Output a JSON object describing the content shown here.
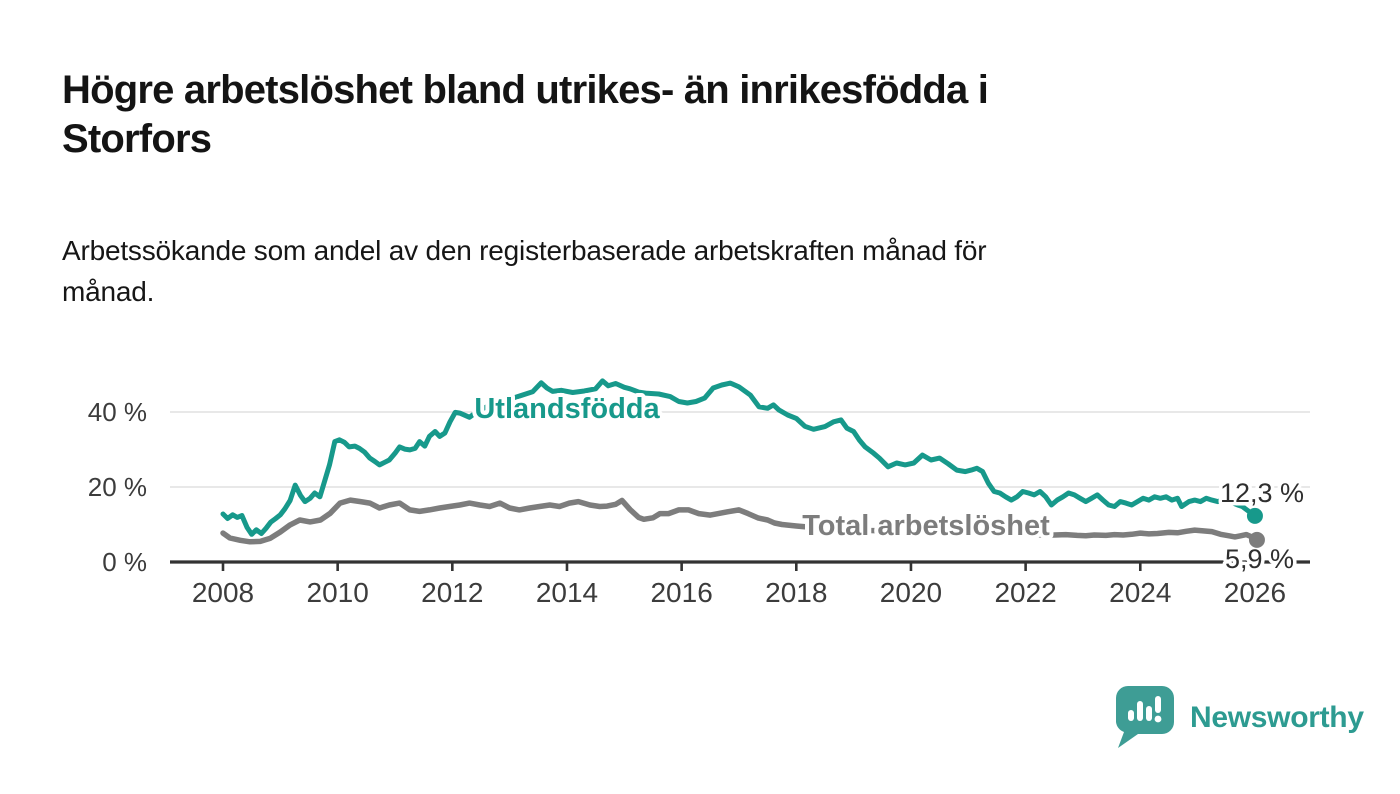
{
  "header": {
    "title_line1": "Högre arbetslöshet bland utrikes- än inrikesfödda i",
    "title_line2": "Storfors",
    "subtitle_line1": "Arbetssökande som andel av den registerbaserade arbetskraften månad för",
    "subtitle_line2": "månad."
  },
  "colors": {
    "foreign_born_line": "#17998b",
    "total_line": "#7d7d7d",
    "gridline": "#e0e0e0",
    "axis": "#333333",
    "axis_text": "#3c3c3c",
    "end_label_text": "#2f2f2f",
    "brand_teal": "#2d9b91",
    "logo_bubble": "#3e9d95"
  },
  "chart_data": {
    "type": "line",
    "title": "",
    "xlabel": "",
    "ylabel": "",
    "unit": "%",
    "grid": "horizontal",
    "x_axis": {
      "tick_years": [
        2008,
        2010,
        2012,
        2014,
        2016,
        2018,
        2020,
        2022,
        2024,
        2026
      ],
      "tick_labels": [
        "2008",
        "2010",
        "2012",
        "2014",
        "2016",
        "2018",
        "2020",
        "2022",
        "2024",
        "2026"
      ],
      "range": [
        2008,
        2027
      ]
    },
    "y_axis": {
      "ticks": [
        {
          "value": 0,
          "label": "0 %"
        },
        {
          "value": 20,
          "label": "20 %"
        },
        {
          "value": 40,
          "label": "40 %"
        }
      ],
      "range": [
        0,
        50
      ]
    },
    "series": [
      {
        "name": "Total arbetslöshet",
        "color": "#7d7d7d",
        "end_label": "5,9 %",
        "end_value": 5.9,
        "points": [
          [
            2008.0,
            7.7
          ],
          [
            2008.12,
            6.4
          ],
          [
            2008.3,
            5.8
          ],
          [
            2008.47,
            5.4
          ],
          [
            2008.65,
            5.5
          ],
          [
            2008.82,
            6.3
          ],
          [
            2009.0,
            8.0
          ],
          [
            2009.17,
            9.9
          ],
          [
            2009.34,
            11.2
          ],
          [
            2009.52,
            10.7
          ],
          [
            2009.7,
            11.2
          ],
          [
            2009.87,
            13.0
          ],
          [
            2010.04,
            15.7
          ],
          [
            2010.22,
            16.5
          ],
          [
            2010.4,
            16.1
          ],
          [
            2010.56,
            15.7
          ],
          [
            2010.73,
            14.4
          ],
          [
            2010.9,
            15.2
          ],
          [
            2011.08,
            15.7
          ],
          [
            2011.26,
            13.9
          ],
          [
            2011.43,
            13.5
          ],
          [
            2011.6,
            13.9
          ],
          [
            2011.78,
            14.4
          ],
          [
            2011.95,
            14.8
          ],
          [
            2012.13,
            15.2
          ],
          [
            2012.3,
            15.7
          ],
          [
            2012.48,
            15.2
          ],
          [
            2012.65,
            14.8
          ],
          [
            2012.83,
            15.7
          ],
          [
            2013.0,
            14.4
          ],
          [
            2013.17,
            13.9
          ],
          [
            2013.35,
            14.4
          ],
          [
            2013.52,
            14.8
          ],
          [
            2013.7,
            15.2
          ],
          [
            2013.87,
            14.8
          ],
          [
            2014.04,
            15.7
          ],
          [
            2014.2,
            16.1
          ],
          [
            2014.4,
            15.2
          ],
          [
            2014.57,
            14.8
          ],
          [
            2014.7,
            14.9
          ],
          [
            2014.85,
            15.4
          ],
          [
            2014.96,
            16.4
          ],
          [
            2015.1,
            14.0
          ],
          [
            2015.25,
            11.9
          ],
          [
            2015.34,
            11.4
          ],
          [
            2015.5,
            11.8
          ],
          [
            2015.62,
            12.9
          ],
          [
            2015.77,
            12.9
          ],
          [
            2015.95,
            13.9
          ],
          [
            2016.12,
            13.9
          ],
          [
            2016.3,
            12.9
          ],
          [
            2016.5,
            12.5
          ],
          [
            2016.64,
            12.9
          ],
          [
            2016.8,
            13.4
          ],
          [
            2017.0,
            13.9
          ],
          [
            2017.16,
            12.9
          ],
          [
            2017.34,
            11.7
          ],
          [
            2017.5,
            11.2
          ],
          [
            2017.62,
            10.4
          ],
          [
            2017.75,
            10.0
          ],
          [
            2018.0,
            9.6
          ],
          [
            2018.3,
            9.2
          ],
          [
            2018.7,
            8.9
          ],
          [
            2019.0,
            8.7
          ],
          [
            2019.3,
            8.4
          ],
          [
            2019.7,
            8.2
          ],
          [
            2020.0,
            8.6
          ],
          [
            2020.3,
            9.0
          ],
          [
            2020.7,
            8.8
          ],
          [
            2021.0,
            8.3
          ],
          [
            2021.3,
            7.9
          ],
          [
            2021.7,
            7.6
          ],
          [
            2022.0,
            7.4
          ],
          [
            2022.3,
            7.2
          ],
          [
            2022.5,
            7.2
          ],
          [
            2022.7,
            7.3
          ],
          [
            2022.9,
            7.1
          ],
          [
            2023.05,
            7.0
          ],
          [
            2023.2,
            7.2
          ],
          [
            2023.4,
            7.1
          ],
          [
            2023.55,
            7.3
          ],
          [
            2023.7,
            7.2
          ],
          [
            2023.85,
            7.4
          ],
          [
            2024.0,
            7.7
          ],
          [
            2024.15,
            7.5
          ],
          [
            2024.3,
            7.6
          ],
          [
            2024.5,
            7.9
          ],
          [
            2024.65,
            7.8
          ],
          [
            2024.8,
            8.2
          ],
          [
            2024.95,
            8.5
          ],
          [
            2025.1,
            8.3
          ],
          [
            2025.25,
            8.1
          ],
          [
            2025.4,
            7.4
          ],
          [
            2025.55,
            7.0
          ],
          [
            2025.65,
            6.7
          ],
          [
            2025.75,
            7.0
          ],
          [
            2025.85,
            7.3
          ],
          [
            2025.93,
            6.8
          ],
          [
            2026.0,
            5.9
          ]
        ]
      },
      {
        "name": "Utlandsfödda",
        "color": "#17998b",
        "end_label": "12,3 %",
        "end_value": 12.3,
        "points": [
          [
            2008.0,
            12.8
          ],
          [
            2008.08,
            11.6
          ],
          [
            2008.17,
            12.6
          ],
          [
            2008.25,
            11.9
          ],
          [
            2008.33,
            12.4
          ],
          [
            2008.42,
            9.2
          ],
          [
            2008.5,
            7.4
          ],
          [
            2008.58,
            8.6
          ],
          [
            2008.67,
            7.6
          ],
          [
            2008.75,
            9.0
          ],
          [
            2008.83,
            10.6
          ],
          [
            2008.92,
            11.6
          ],
          [
            2009.0,
            12.6
          ],
          [
            2009.08,
            14.2
          ],
          [
            2009.17,
            16.4
          ],
          [
            2009.26,
            20.5
          ],
          [
            2009.35,
            17.8
          ],
          [
            2009.43,
            16.1
          ],
          [
            2009.52,
            17.0
          ],
          [
            2009.6,
            18.4
          ],
          [
            2009.69,
            17.4
          ],
          [
            2009.78,
            21.9
          ],
          [
            2009.86,
            26.0
          ],
          [
            2009.95,
            32.1
          ],
          [
            2010.03,
            32.6
          ],
          [
            2010.12,
            31.9
          ],
          [
            2010.2,
            30.7
          ],
          [
            2010.3,
            30.9
          ],
          [
            2010.38,
            30.3
          ],
          [
            2010.47,
            29.3
          ],
          [
            2010.56,
            27.7
          ],
          [
            2010.65,
            26.8
          ],
          [
            2010.73,
            25.9
          ],
          [
            2010.82,
            26.6
          ],
          [
            2010.9,
            27.2
          ],
          [
            2011.0,
            29.0
          ],
          [
            2011.08,
            30.7
          ],
          [
            2011.17,
            30.1
          ],
          [
            2011.26,
            29.9
          ],
          [
            2011.35,
            30.3
          ],
          [
            2011.43,
            32.1
          ],
          [
            2011.52,
            30.9
          ],
          [
            2011.6,
            33.5
          ],
          [
            2011.7,
            34.8
          ],
          [
            2011.78,
            33.5
          ],
          [
            2011.87,
            34.4
          ],
          [
            2011.96,
            37.4
          ],
          [
            2012.05,
            39.9
          ],
          [
            2012.13,
            39.7
          ],
          [
            2012.3,
            38.6
          ],
          [
            2012.45,
            40.3
          ],
          [
            2012.6,
            41.4
          ],
          [
            2012.8,
            42.4
          ],
          [
            2013.0,
            43.4
          ],
          [
            2013.2,
            44.4
          ],
          [
            2013.4,
            45.4
          ],
          [
            2013.55,
            47.8
          ],
          [
            2013.65,
            46.4
          ],
          [
            2013.75,
            45.5
          ],
          [
            2013.9,
            45.8
          ],
          [
            2014.1,
            45.2
          ],
          [
            2014.3,
            45.6
          ],
          [
            2014.5,
            46.2
          ],
          [
            2014.62,
            48.3
          ],
          [
            2014.72,
            47.0
          ],
          [
            2014.85,
            47.6
          ],
          [
            2015.0,
            46.6
          ],
          [
            2015.1,
            46.2
          ],
          [
            2015.25,
            45.3
          ],
          [
            2015.4,
            45.0
          ],
          [
            2015.6,
            44.8
          ],
          [
            2015.8,
            44.1
          ],
          [
            2015.95,
            42.8
          ],
          [
            2016.1,
            42.4
          ],
          [
            2016.25,
            42.8
          ],
          [
            2016.4,
            43.7
          ],
          [
            2016.55,
            46.4
          ],
          [
            2016.7,
            47.2
          ],
          [
            2016.85,
            47.7
          ],
          [
            2017.0,
            46.7
          ],
          [
            2017.1,
            45.6
          ],
          [
            2017.2,
            44.5
          ],
          [
            2017.35,
            41.4
          ],
          [
            2017.5,
            41.0
          ],
          [
            2017.6,
            41.9
          ],
          [
            2017.7,
            40.5
          ],
          [
            2017.85,
            39.2
          ],
          [
            2018.0,
            38.3
          ],
          [
            2018.15,
            36.2
          ],
          [
            2018.3,
            35.4
          ],
          [
            2018.5,
            36.1
          ],
          [
            2018.65,
            37.4
          ],
          [
            2018.78,
            37.9
          ],
          [
            2018.88,
            35.7
          ],
          [
            2019.0,
            34.8
          ],
          [
            2019.1,
            32.5
          ],
          [
            2019.2,
            30.7
          ],
          [
            2019.35,
            29.0
          ],
          [
            2019.45,
            27.7
          ],
          [
            2019.6,
            25.4
          ],
          [
            2019.75,
            26.4
          ],
          [
            2019.9,
            25.9
          ],
          [
            2020.05,
            26.4
          ],
          [
            2020.2,
            28.5
          ],
          [
            2020.35,
            27.2
          ],
          [
            2020.5,
            27.7
          ],
          [
            2020.65,
            26.2
          ],
          [
            2020.8,
            24.5
          ],
          [
            2020.95,
            24.1
          ],
          [
            2021.05,
            24.5
          ],
          [
            2021.15,
            25.0
          ],
          [
            2021.25,
            24.1
          ],
          [
            2021.35,
            21.0
          ],
          [
            2021.45,
            18.8
          ],
          [
            2021.55,
            18.4
          ],
          [
            2021.65,
            17.4
          ],
          [
            2021.75,
            16.5
          ],
          [
            2021.85,
            17.4
          ],
          [
            2021.95,
            18.8
          ],
          [
            2022.05,
            18.4
          ],
          [
            2022.15,
            17.9
          ],
          [
            2022.25,
            18.8
          ],
          [
            2022.35,
            17.4
          ],
          [
            2022.45,
            15.2
          ],
          [
            2022.55,
            16.5
          ],
          [
            2022.65,
            17.4
          ],
          [
            2022.75,
            18.4
          ],
          [
            2022.85,
            17.9
          ],
          [
            2022.95,
            17.0
          ],
          [
            2023.05,
            16.1
          ],
          [
            2023.15,
            17.0
          ],
          [
            2023.25,
            17.9
          ],
          [
            2023.35,
            16.5
          ],
          [
            2023.45,
            15.2
          ],
          [
            2023.55,
            14.8
          ],
          [
            2023.65,
            16.1
          ],
          [
            2023.75,
            15.7
          ],
          [
            2023.85,
            15.2
          ],
          [
            2023.95,
            16.1
          ],
          [
            2024.05,
            17.0
          ],
          [
            2024.15,
            16.5
          ],
          [
            2024.25,
            17.4
          ],
          [
            2024.35,
            17.0
          ],
          [
            2024.45,
            17.4
          ],
          [
            2024.55,
            16.5
          ],
          [
            2024.65,
            17.0
          ],
          [
            2024.72,
            14.8
          ],
          [
            2024.85,
            16.1
          ],
          [
            2024.95,
            16.5
          ],
          [
            2025.05,
            16.1
          ],
          [
            2025.15,
            17.0
          ],
          [
            2025.25,
            16.5
          ],
          [
            2025.35,
            16.1
          ],
          [
            2025.45,
            16.6
          ],
          [
            2025.55,
            17.0
          ],
          [
            2025.62,
            15.7
          ],
          [
            2025.7,
            15.2
          ],
          [
            2025.78,
            14.8
          ],
          [
            2025.85,
            14.0
          ],
          [
            2025.93,
            13.1
          ],
          [
            2026.0,
            12.3
          ]
        ]
      }
    ],
    "legend_position": "inline-labels"
  },
  "footer": {
    "brand": "Newsworthy"
  }
}
